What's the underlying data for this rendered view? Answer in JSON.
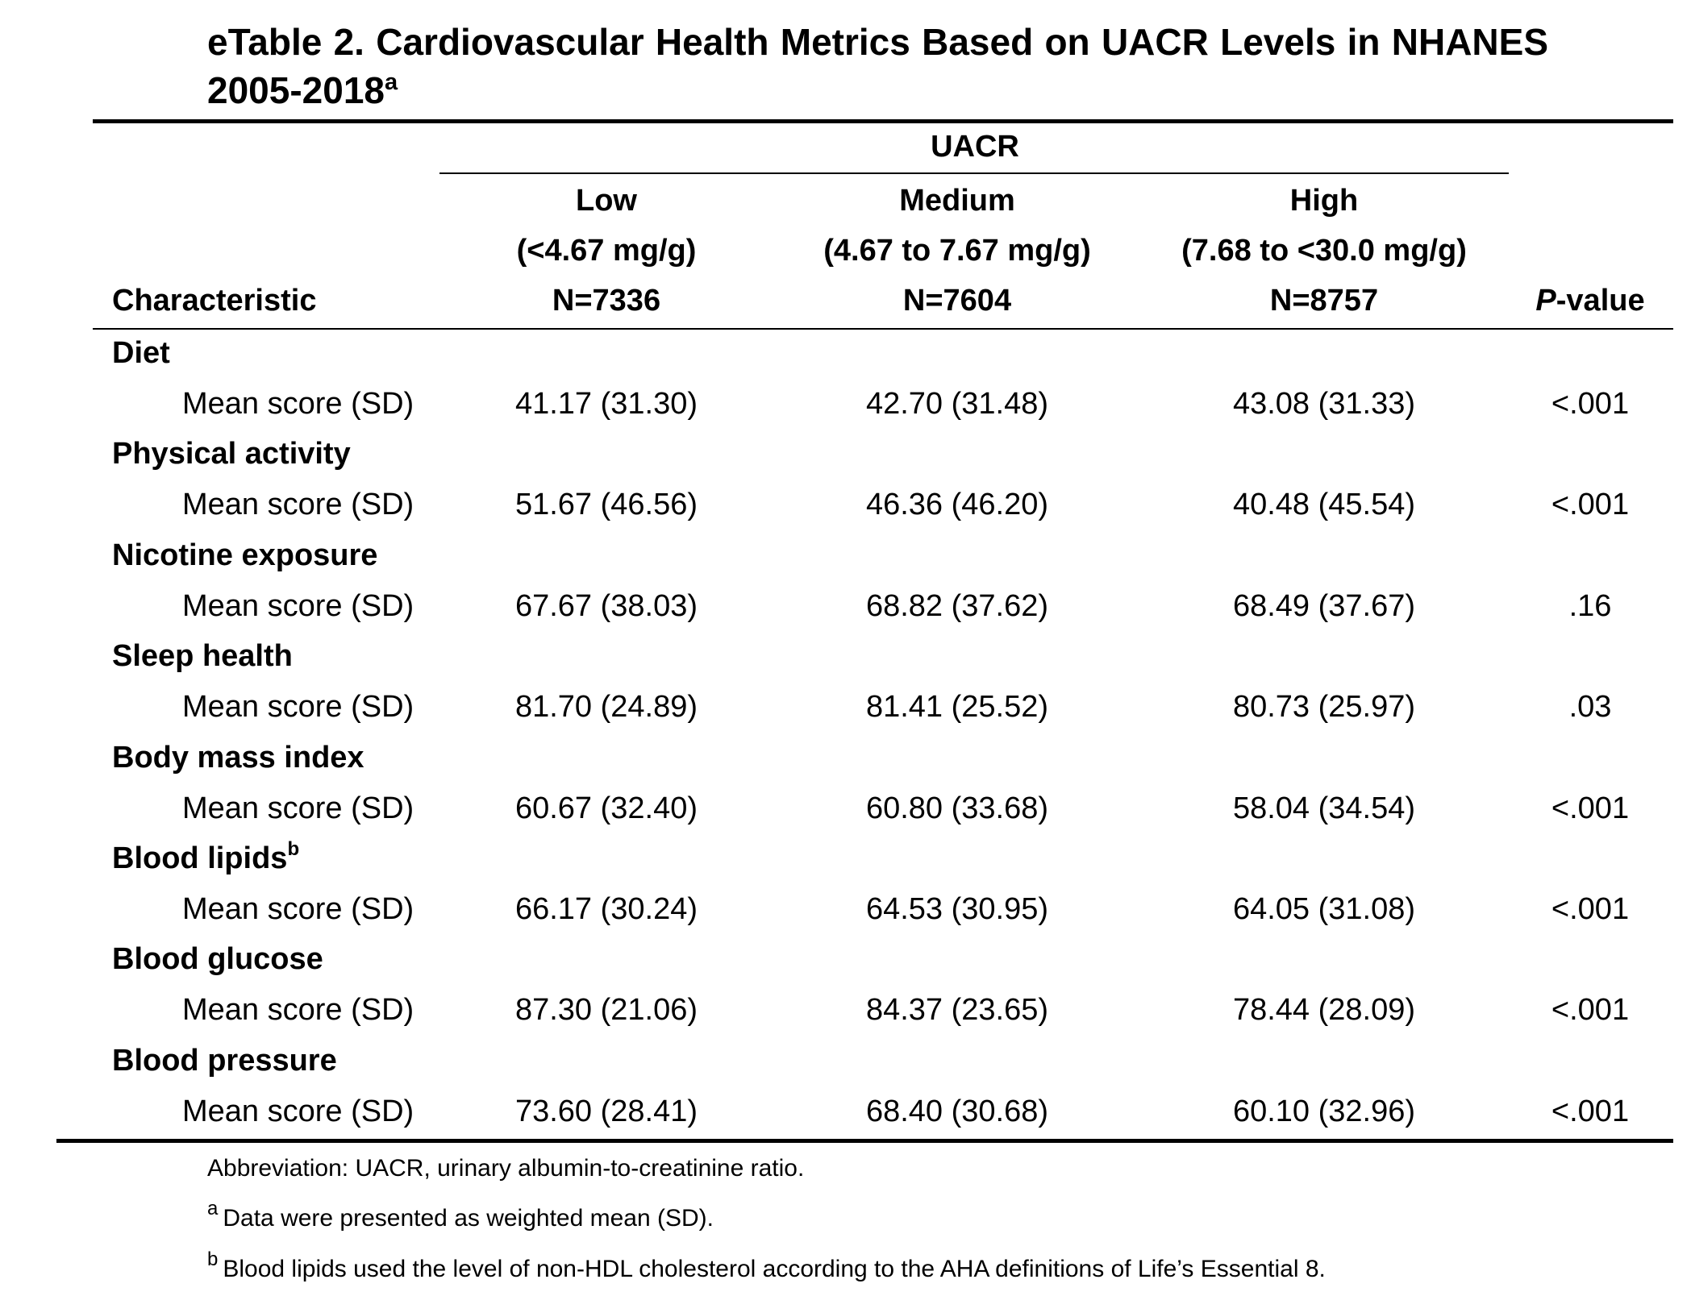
{
  "title": {
    "text": "eTable 2. Cardiovascular Health Metrics Based on UACR Levels in NHANES 2005-2018",
    "superscript": "a"
  },
  "header": {
    "group_label": "UACR",
    "characteristic_label": "Characteristic",
    "pvalue_prefix": "P",
    "pvalue_suffix": "-value",
    "groups": [
      {
        "name": "Low",
        "range": "(<4.67 mg/g)",
        "n": "N=7336"
      },
      {
        "name": "Medium",
        "range": "(4.67 to 7.67 mg/g)",
        "n": "N=7604"
      },
      {
        "name": "High",
        "range": "(7.68 to <30.0 mg/g)",
        "n": "N=8757"
      }
    ]
  },
  "rows": [
    {
      "category": "Diet",
      "category_sup": "",
      "label": "Mean score (SD)",
      "low": "41.17 (31.30)",
      "medium": "42.70 (31.48)",
      "high": "43.08 (31.33)",
      "p": "<.001"
    },
    {
      "category": "Physical activity",
      "category_sup": "",
      "label": "Mean score (SD)",
      "low": "51.67 (46.56)",
      "medium": "46.36 (46.20)",
      "high": "40.48 (45.54)",
      "p": "<.001"
    },
    {
      "category": "Nicotine exposure",
      "category_sup": "",
      "label": "Mean score (SD)",
      "low": "67.67 (38.03)",
      "medium": "68.82 (37.62)",
      "high": "68.49 (37.67)",
      "p": ".16"
    },
    {
      "category": "Sleep health",
      "category_sup": "",
      "label": "Mean score (SD)",
      "low": "81.70 (24.89)",
      "medium": "81.41 (25.52)",
      "high": "80.73 (25.97)",
      "p": ".03"
    },
    {
      "category": "Body mass index",
      "category_sup": "",
      "label": "Mean score (SD)",
      "low": "60.67 (32.40)",
      "medium": "60.80 (33.68)",
      "high": "58.04 (34.54)",
      "p": "<.001"
    },
    {
      "category": "Blood lipids",
      "category_sup": "b",
      "label": "Mean score (SD)",
      "low": "66.17 (30.24)",
      "medium": "64.53 (30.95)",
      "high": "64.05 (31.08)",
      "p": "<.001"
    },
    {
      "category": "Blood glucose",
      "category_sup": "",
      "label": "Mean score (SD)",
      "low": "87.30 (21.06)",
      "medium": "84.37 (23.65)",
      "high": "78.44 (28.09)",
      "p": "<.001"
    },
    {
      "category": "Blood pressure",
      "category_sup": "",
      "label": "Mean score (SD)",
      "low": "73.60 (28.41)",
      "medium": "68.40 (30.68)",
      "high": "60.10 (32.96)",
      "p": "<.001"
    }
  ],
  "footnotes": {
    "abbreviation": "Abbreviation: UACR, urinary albumin-to-creatinine ratio.",
    "a_marker": "a",
    "a_text": "Data were presented as weighted mean (SD).",
    "b_marker": "b",
    "b_text": "Blood lipids used the level of non-HDL cholesterol according to the AHA definitions of Life’s Essential 8."
  }
}
